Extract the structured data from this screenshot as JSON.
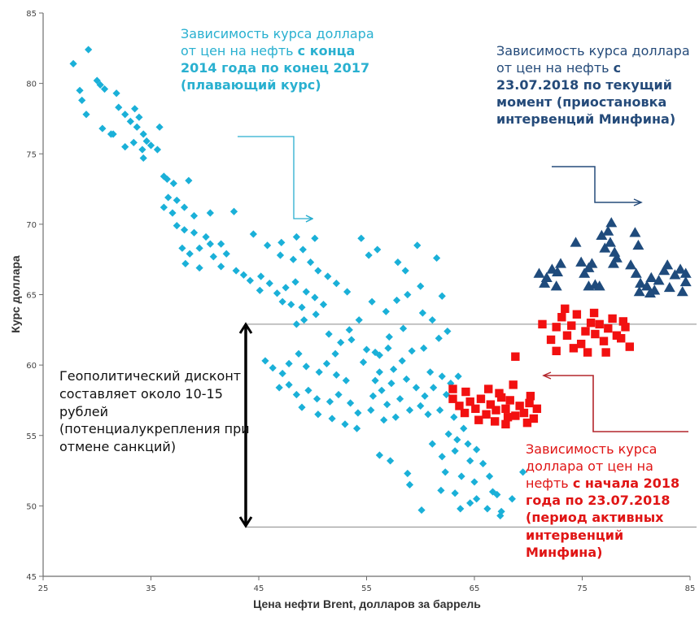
{
  "chart_data": {
    "type": "scatter",
    "title": "",
    "xlabel": "Цена нефти Brent, долларов за баррель",
    "ylabel": "Курс доллара",
    "xlim": [
      25,
      85
    ],
    "ylim": [
      45,
      85
    ],
    "xticks": [
      25,
      35,
      45,
      55,
      65,
      75,
      85
    ],
    "yticks": [
      45,
      50,
      55,
      60,
      65,
      70,
      75,
      80,
      85
    ],
    "grid": false,
    "reference_lines": [
      62.9,
      48.5
    ],
    "series": [
      {
        "name": "floating",
        "marker": "diamond",
        "color": "#1ab0d8",
        "points": [
          [
            27.8,
            81.4
          ],
          [
            29.2,
            82.4
          ],
          [
            28.4,
            79.5
          ],
          [
            28.6,
            78.8
          ],
          [
            29,
            77.8
          ],
          [
            30,
            80.2
          ],
          [
            30.3,
            79.9
          ],
          [
            30.7,
            79.6
          ],
          [
            31.8,
            79.3
          ],
          [
            30.5,
            76.8
          ],
          [
            31.3,
            76.4
          ],
          [
            32,
            78.3
          ],
          [
            32.6,
            77.8
          ],
          [
            33.1,
            77.3
          ],
          [
            33.5,
            78.2
          ],
          [
            33.9,
            77.6
          ],
          [
            33.7,
            76.9
          ],
          [
            34.3,
            76.4
          ],
          [
            34.6,
            75.9
          ],
          [
            33.4,
            75.8
          ],
          [
            34.2,
            75.3
          ],
          [
            35,
            75.6
          ],
          [
            35.6,
            75.3
          ],
          [
            34.3,
            74.7
          ],
          [
            35.8,
            76.9
          ],
          [
            31.5,
            76.4
          ],
          [
            32.6,
            75.5
          ],
          [
            36.2,
            73.4
          ],
          [
            36.5,
            73.2
          ],
          [
            37.1,
            72.9
          ],
          [
            38.5,
            73.1
          ],
          [
            36.6,
            71.9
          ],
          [
            37.4,
            71.7
          ],
          [
            36.2,
            71.2
          ],
          [
            37,
            70.8
          ],
          [
            38.1,
            71.2
          ],
          [
            39,
            70.6
          ],
          [
            40.5,
            70.8
          ],
          [
            42.7,
            70.9
          ],
          [
            37.4,
            69.9
          ],
          [
            38.1,
            69.6
          ],
          [
            39,
            69.4
          ],
          [
            40.1,
            69.1
          ],
          [
            40.5,
            68.6
          ],
          [
            41.5,
            68.6
          ],
          [
            37.9,
            68.3
          ],
          [
            38.6,
            67.9
          ],
          [
            39.5,
            68.3
          ],
          [
            40.8,
            67.7
          ],
          [
            42,
            67.9
          ],
          [
            44.5,
            69.3
          ],
          [
            38.2,
            67.2
          ],
          [
            39.5,
            66.9
          ],
          [
            41.5,
            67
          ],
          [
            42.9,
            66.7
          ],
          [
            43.6,
            66.4
          ],
          [
            44.2,
            66
          ],
          [
            45.2,
            66.3
          ],
          [
            46,
            65.8
          ],
          [
            45.1,
            65.3
          ],
          [
            46.7,
            65.1
          ],
          [
            47.2,
            64.5
          ],
          [
            48,
            64.3
          ],
          [
            49,
            64.1
          ],
          [
            47.5,
            65.5
          ],
          [
            48.4,
            65.9
          ],
          [
            49.4,
            65.2
          ],
          [
            50.2,
            64.8
          ],
          [
            51,
            64.3
          ],
          [
            50.3,
            63.6
          ],
          [
            49.2,
            63.2
          ],
          [
            48.5,
            62.9
          ],
          [
            45.8,
            68.5
          ],
          [
            47.1,
            68.7
          ],
          [
            48.5,
            69.1
          ],
          [
            50.2,
            69
          ],
          [
            49.1,
            68.2
          ],
          [
            47,
            67.8
          ],
          [
            48.2,
            67.5
          ],
          [
            49.8,
            67.3
          ],
          [
            50.5,
            66.7
          ],
          [
            51.4,
            66.3
          ],
          [
            52.2,
            65.8
          ],
          [
            53.2,
            65.2
          ],
          [
            54.5,
            69
          ],
          [
            56,
            68.2
          ],
          [
            55.2,
            67.8
          ],
          [
            57.9,
            67.3
          ],
          [
            58.6,
            66.7
          ],
          [
            59.7,
            68.5
          ],
          [
            61.5,
            67.6
          ],
          [
            62,
            64.9
          ],
          [
            60,
            65.6
          ],
          [
            58.8,
            65
          ],
          [
            57.8,
            64.6
          ],
          [
            56.8,
            63.8
          ],
          [
            55.5,
            64.5
          ],
          [
            54.3,
            63.2
          ],
          [
            53.4,
            62.5
          ],
          [
            52.6,
            61.6
          ],
          [
            51.5,
            62.2
          ],
          [
            52.1,
            60.8
          ],
          [
            53.6,
            61.8
          ],
          [
            55,
            61.1
          ],
          [
            56.2,
            60.7
          ],
          [
            57.1,
            62
          ],
          [
            58.4,
            62.6
          ],
          [
            60.2,
            63.7
          ],
          [
            61.1,
            63.2
          ],
          [
            62.5,
            62.4
          ],
          [
            61.7,
            61.9
          ],
          [
            60.3,
            61.2
          ],
          [
            45.6,
            60.3
          ],
          [
            46.3,
            59.8
          ],
          [
            47.2,
            59.4
          ],
          [
            47.8,
            60.1
          ],
          [
            48.7,
            60.8
          ],
          [
            49.4,
            59.9
          ],
          [
            50.6,
            59.5
          ],
          [
            51.3,
            60.1
          ],
          [
            52.2,
            59.3
          ],
          [
            53.1,
            58.9
          ],
          [
            46.9,
            58.4
          ],
          [
            47.8,
            58.6
          ],
          [
            48.5,
            57.9
          ],
          [
            49.6,
            58.2
          ],
          [
            50.4,
            57.6
          ],
          [
            51.6,
            57.4
          ],
          [
            52.4,
            57.9
          ],
          [
            53.5,
            57.3
          ],
          [
            54.2,
            56.6
          ],
          [
            55.4,
            56.8
          ],
          [
            49,
            57
          ],
          [
            50.5,
            56.5
          ],
          [
            51.8,
            56.2
          ],
          [
            53,
            55.8
          ],
          [
            54.1,
            55.5
          ],
          [
            55.6,
            57.8
          ],
          [
            56.4,
            58.2
          ],
          [
            57.3,
            58.7
          ],
          [
            58.1,
            57.6
          ],
          [
            56.9,
            57.2
          ],
          [
            55.8,
            58.9
          ],
          [
            57.5,
            59.7
          ],
          [
            58.7,
            59
          ],
          [
            59.6,
            58.4
          ],
          [
            60.4,
            57.8
          ],
          [
            56.2,
            59.5
          ],
          [
            54.7,
            60.2
          ],
          [
            55.8,
            60.9
          ],
          [
            57,
            61.2
          ],
          [
            58.3,
            60.3
          ],
          [
            59.2,
            61
          ],
          [
            56.6,
            56.1
          ],
          [
            57.7,
            56.3
          ],
          [
            59,
            56.8
          ],
          [
            60,
            57.1
          ],
          [
            60.7,
            56.5
          ],
          [
            62,
            59.2
          ],
          [
            62.8,
            58.7
          ],
          [
            63.5,
            59.2
          ],
          [
            61.2,
            58.4
          ],
          [
            60.9,
            59.5
          ],
          [
            62.4,
            57.9
          ],
          [
            61.8,
            56.8
          ],
          [
            63.1,
            56.3
          ],
          [
            64,
            55.5
          ],
          [
            62.6,
            55.1
          ],
          [
            61.1,
            54.4
          ],
          [
            63.4,
            54.7
          ],
          [
            64.4,
            54.4
          ],
          [
            65.2,
            54
          ],
          [
            62,
            53.5
          ],
          [
            63.2,
            53.9
          ],
          [
            64.6,
            53.2
          ],
          [
            65.8,
            53
          ],
          [
            66.4,
            52.1
          ],
          [
            62.3,
            52.4
          ],
          [
            63.8,
            52.1
          ],
          [
            65,
            51.7
          ],
          [
            66.7,
            51
          ],
          [
            67.1,
            50.8
          ],
          [
            63.2,
            50.9
          ],
          [
            64.6,
            50.2
          ],
          [
            65.2,
            50.5
          ],
          [
            66.2,
            49.8
          ],
          [
            67.5,
            49.6
          ],
          [
            68.5,
            50.5
          ],
          [
            56.2,
            53.6
          ],
          [
            57.2,
            53.2
          ],
          [
            58.8,
            52.3
          ],
          [
            60.1,
            49.7
          ],
          [
            59,
            51.5
          ],
          [
            61.9,
            51.1
          ],
          [
            63.7,
            49.8
          ],
          [
            67.4,
            49.3
          ],
          [
            69.5,
            52.4
          ]
        ]
      },
      {
        "name": "active_interventions",
        "marker": "square",
        "color": "#f21010",
        "points": [
          [
            63,
            58.3
          ],
          [
            63,
            57.6
          ],
          [
            63.6,
            57.1
          ],
          [
            64.1,
            56.6
          ],
          [
            64.6,
            57.4
          ],
          [
            65.1,
            56.9
          ],
          [
            65.6,
            57.6
          ],
          [
            66.1,
            56.5
          ],
          [
            66.5,
            57.2
          ],
          [
            67,
            56.8
          ],
          [
            67.5,
            57.7
          ],
          [
            67.9,
            56.9
          ],
          [
            68.3,
            57.5
          ],
          [
            68.8,
            56.4
          ],
          [
            69.2,
            57.1
          ],
          [
            69.6,
            56.6
          ],
          [
            70.1,
            57.3
          ],
          [
            70.5,
            56.2
          ],
          [
            70.8,
            56.9
          ],
          [
            66.3,
            58.3
          ],
          [
            67.3,
            58
          ],
          [
            68.6,
            58.6
          ],
          [
            67.9,
            55.8
          ],
          [
            69.9,
            55.9
          ],
          [
            68.8,
            60.6
          ],
          [
            64.2,
            58.1
          ],
          [
            65.4,
            56.1
          ],
          [
            66.9,
            56
          ],
          [
            68.1,
            56.3
          ],
          [
            70.2,
            57.8
          ],
          [
            72.1,
            61.8
          ],
          [
            72.6,
            62.7
          ],
          [
            73.1,
            63.4
          ],
          [
            73.6,
            62.1
          ],
          [
            74,
            62.8
          ],
          [
            74.5,
            63.6
          ],
          [
            74.9,
            61.5
          ],
          [
            75.3,
            62.4
          ],
          [
            75.8,
            63
          ],
          [
            76.2,
            62.2
          ],
          [
            76.6,
            62.9
          ],
          [
            77,
            61.7
          ],
          [
            77.4,
            62.6
          ],
          [
            77.8,
            63.3
          ],
          [
            78.2,
            62.1
          ],
          [
            78.6,
            61.9
          ],
          [
            79,
            62.7
          ],
          [
            79.4,
            61.3
          ],
          [
            73.4,
            64
          ],
          [
            74.2,
            61.2
          ],
          [
            72.6,
            61
          ],
          [
            71.3,
            62.9
          ],
          [
            76.1,
            63.7
          ],
          [
            78.8,
            63.1
          ],
          [
            77.2,
            60.9
          ],
          [
            75.5,
            60.9
          ]
        ]
      },
      {
        "name": "suspended_interventions",
        "marker": "triangle",
        "color": "#1f4b7c",
        "points": [
          [
            71,
            66.5
          ],
          [
            71.7,
            66.2
          ],
          [
            72.2,
            66.8
          ],
          [
            72.7,
            66.6
          ],
          [
            73,
            67.2
          ],
          [
            71.5,
            65.8
          ],
          [
            72.6,
            65.6
          ],
          [
            74.4,
            68.7
          ],
          [
            74.9,
            67.3
          ],
          [
            75.2,
            66.5
          ],
          [
            75.6,
            66.9
          ],
          [
            75.9,
            67.2
          ],
          [
            75.6,
            65.6
          ],
          [
            76.2,
            65.7
          ],
          [
            76.6,
            65.6
          ],
          [
            77.1,
            68.3
          ],
          [
            77.6,
            68.7
          ],
          [
            78,
            68
          ],
          [
            78.2,
            67.6
          ],
          [
            77.9,
            67.2
          ],
          [
            76.8,
            69.2
          ],
          [
            77.4,
            69.5
          ],
          [
            77.7,
            70.1
          ],
          [
            79.9,
            69.4
          ],
          [
            80.2,
            68.5
          ],
          [
            79.5,
            67.1
          ],
          [
            80,
            66.5
          ],
          [
            80.4,
            65.8
          ],
          [
            81,
            65.6
          ],
          [
            81.4,
            66.2
          ],
          [
            81.7,
            65.3
          ],
          [
            82.1,
            66
          ],
          [
            82.6,
            66.7
          ],
          [
            83.1,
            65.5
          ],
          [
            83.6,
            66.4
          ],
          [
            84.1,
            66.8
          ],
          [
            84.3,
            65.2
          ],
          [
            84.6,
            65.9
          ],
          [
            80.3,
            65.2
          ],
          [
            81.3,
            65.1
          ],
          [
            82.9,
            67.1
          ],
          [
            84.6,
            66.5
          ]
        ]
      }
    ],
    "annotations": {
      "cyan": {
        "plain": "Зависимость курса доллара от цен на нефть",
        "bold": "с конца 2014 года по конец 2017 (плавающий курс)"
      },
      "navy": {
        "plain": "Зависимость курса доллара от цен на нефть",
        "bold": "с 23.07.2018 по текущий момент (приостановка интервенций Минфина)"
      },
      "red": {
        "plain": "Зависимость курса доллара от цен на нефть",
        "bold": "с начала 2018 года по 23.07.2018 (период активных интервенций Минфина)"
      },
      "geo": {
        "text": "Геополитический дисконт составляет около 10-15 рублей (потенциалукрепления при отмене санкций)"
      }
    }
  },
  "colors": {
    "cyan": "#1ab0d8",
    "red": "#f21010",
    "navy": "#1f4b7c",
    "axis": "#777777"
  }
}
